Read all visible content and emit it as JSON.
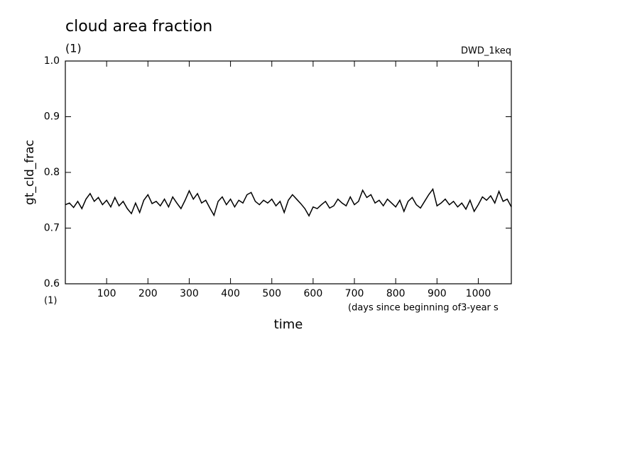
{
  "chart_data": {
    "type": "line",
    "title": "cloud area fraction",
    "units": "(1)",
    "run_label": "DWD_1keq",
    "ylabel": "gt_cld_frac",
    "x_units": "(1)",
    "xlabel": "time",
    "xlabel_note": "(days since beginning of3-year s",
    "xlim": [
      0,
      1080
    ],
    "ylim": [
      0.6,
      1
    ],
    "xticks": [
      100,
      200,
      300,
      400,
      500,
      600,
      700,
      800,
      900,
      1000
    ],
    "yticks": [
      0.6,
      0.7,
      0.8,
      0.9,
      {
        "value": 1,
        "label": "1.0"
      }
    ],
    "grid": false,
    "color": "#000000",
    "x": [
      0,
      10,
      20,
      30,
      40,
      50,
      60,
      70,
      80,
      90,
      100,
      110,
      120,
      130,
      140,
      150,
      160,
      170,
      180,
      190,
      200,
      210,
      220,
      230,
      240,
      250,
      260,
      270,
      280,
      290,
      300,
      310,
      320,
      330,
      340,
      350,
      360,
      370,
      380,
      390,
      400,
      410,
      420,
      430,
      440,
      450,
      460,
      470,
      480,
      490,
      500,
      510,
      520,
      530,
      540,
      550,
      560,
      570,
      580,
      590,
      600,
      610,
      620,
      630,
      640,
      650,
      660,
      670,
      680,
      690,
      700,
      710,
      720,
      730,
      740,
      750,
      760,
      770,
      780,
      790,
      800,
      810,
      820,
      830,
      840,
      850,
      860,
      870,
      880,
      890,
      900,
      910,
      920,
      930,
      940,
      950,
      960,
      970,
      980,
      990,
      1000,
      1010,
      1020,
      1030,
      1040,
      1050,
      1060,
      1070,
      1080
    ],
    "values": [
      0.742,
      0.745,
      0.737,
      0.748,
      0.735,
      0.752,
      0.762,
      0.748,
      0.755,
      0.742,
      0.75,
      0.738,
      0.755,
      0.74,
      0.748,
      0.735,
      0.726,
      0.745,
      0.728,
      0.75,
      0.76,
      0.744,
      0.748,
      0.74,
      0.752,
      0.738,
      0.756,
      0.745,
      0.735,
      0.75,
      0.767,
      0.752,
      0.762,
      0.745,
      0.75,
      0.736,
      0.723,
      0.748,
      0.756,
      0.742,
      0.752,
      0.738,
      0.75,
      0.745,
      0.76,
      0.764,
      0.748,
      0.742,
      0.75,
      0.745,
      0.752,
      0.74,
      0.748,
      0.728,
      0.75,
      0.76,
      0.752,
      0.744,
      0.735,
      0.722,
      0.738,
      0.735,
      0.742,
      0.748,
      0.736,
      0.74,
      0.752,
      0.745,
      0.74,
      0.756,
      0.742,
      0.748,
      0.768,
      0.755,
      0.76,
      0.745,
      0.75,
      0.74,
      0.752,
      0.745,
      0.738,
      0.75,
      0.73,
      0.748,
      0.755,
      0.742,
      0.736,
      0.748,
      0.76,
      0.77,
      0.74,
      0.745,
      0.752,
      0.742,
      0.748,
      0.738,
      0.745,
      0.734,
      0.75,
      0.73,
      0.742,
      0.756,
      0.75,
      0.758,
      0.745,
      0.766,
      0.748,
      0.752,
      0.738
    ]
  }
}
